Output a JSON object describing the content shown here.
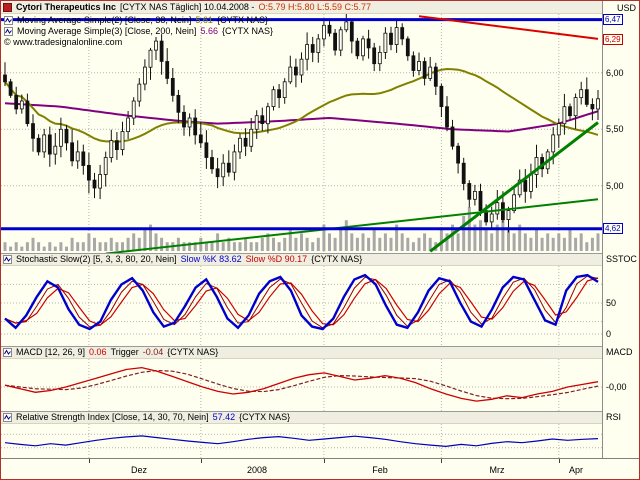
{
  "colors": {
    "background": "#fffff0",
    "border": "#b03030",
    "grid": "#b4b4b4",
    "candle": "#111111",
    "volume": "#a8a8a8",
    "ma38": "#808000",
    "ma200": "#800080",
    "support": "#0000cc",
    "resistance": "#0000cc",
    "trend_red": "#dd0000",
    "trend_green": "#008000",
    "stoch_k": "#0000cc",
    "stoch_d": "#cc0000",
    "macd_line": "#cc0000",
    "macd_trigger": "#802020",
    "rsi_line": "#0000bb",
    "ohlc_text": "#cc3300"
  },
  "main_panel": {
    "title": "Cytori Therapeutics Inc",
    "subtitle": "[CYTX NAS Täglich] 10.04.2008 -",
    "ohlc": "O:5.79 H:5.80 L:5.59 C:5.77",
    "currency_label": "USD",
    "overlays": [
      {
        "prefix": "Moving Average Simple(2) [Close, 38, Nein]",
        "value": "5.61",
        "suffix": "{CYTX NAS}"
      },
      {
        "prefix": "Moving Average Simple(3) [Close, 200, Nein]",
        "value": "5.66",
        "suffix": "{CYTX NAS}"
      }
    ],
    "copyright": "© www.tradesignalonline.com",
    "axis_labels": [
      "6,00",
      "5,50",
      "5,00"
    ],
    "flags": [
      {
        "text": "6,47",
        "value": 6.47,
        "color": "#0000cc"
      },
      {
        "text": "6,29",
        "value": 6.29,
        "color": "#cc0000"
      },
      {
        "text": "4,62",
        "value": 4.62,
        "color": "#0000cc"
      }
    ]
  },
  "stoch_panel": {
    "name": "Stochastic Slow(2) [5, 3, 3, 80, 20, Nein]",
    "k_label": "Slow %K 83.62",
    "d_label": "Slow %D 90.17",
    "symbol": "{CYTX NAS}",
    "axis_label": "SSTOC",
    "yticks": [
      "50",
      "0"
    ]
  },
  "macd_panel": {
    "name": "MACD [12, 26, 9]",
    "value": "0.06",
    "trigger_label": "Trigger",
    "trigger_value": "-0.04",
    "symbol": "{CYTX NAS}",
    "axis_label": "MACD",
    "zero_label": "-0,00"
  },
  "rsi_panel": {
    "name": "Relative Strength Index [Close, 14, 30, 70, Nein]",
    "value": "57.42",
    "symbol": "{CYTX NAS}",
    "axis_label": "RSI"
  },
  "chart_data": [
    {
      "type": "candlestick",
      "title": "Cytori Therapeutics Inc [CYTX NAS Täglich]",
      "date": "10.04.2008",
      "ohlc_last": {
        "open": 5.79,
        "high": 5.8,
        "low": 5.59,
        "close": 5.77
      },
      "ylabel": "USD",
      "ylim": [
        4.39,
        6.52
      ],
      "yticks": [
        5.0,
        5.5,
        6.0
      ],
      "closes": [
        5.92,
        5.8,
        5.68,
        5.75,
        5.55,
        5.42,
        5.3,
        5.45,
        5.28,
        5.35,
        5.5,
        5.38,
        5.22,
        5.3,
        5.18,
        5.05,
        4.98,
        5.1,
        5.25,
        5.4,
        5.32,
        5.48,
        5.6,
        5.75,
        5.9,
        6.05,
        6.2,
        6.28,
        6.1,
        5.95,
        5.8,
        5.65,
        5.52,
        5.6,
        5.45,
        5.38,
        5.25,
        5.15,
        5.08,
        5.2,
        5.12,
        5.3,
        5.42,
        5.35,
        5.5,
        5.62,
        5.55,
        5.7,
        5.85,
        5.78,
        5.92,
        6.05,
        5.98,
        6.12,
        6.25,
        6.18,
        6.3,
        6.42,
        6.35,
        6.2,
        6.38,
        6.45,
        6.28,
        6.15,
        6.3,
        6.22,
        6.08,
        6.18,
        6.35,
        6.25,
        6.4,
        6.3,
        6.15,
        6.02,
        6.1,
        5.95,
        6.05,
        5.88,
        5.7,
        5.52,
        5.35,
        5.2,
        5.02,
        4.88,
        4.95,
        4.78,
        4.68,
        4.75,
        4.85,
        4.7,
        4.78,
        4.92,
        5.05,
        4.95,
        5.1,
        5.25,
        5.15,
        5.3,
        5.45,
        5.55,
        5.7,
        5.62,
        5.78,
        5.85,
        5.72,
        5.68,
        5.77
      ],
      "volumes": [
        2,
        1,
        2,
        1,
        2,
        3,
        2,
        1,
        2,
        1,
        2,
        1,
        3,
        2,
        2,
        4,
        3,
        2,
        2,
        3,
        2,
        2,
        3,
        4,
        3,
        5,
        6,
        4,
        3,
        2,
        2,
        3,
        2,
        2,
        2,
        3,
        2,
        2,
        4,
        2,
        3,
        2,
        2,
        3,
        2,
        2,
        3,
        4,
        3,
        2,
        3,
        5,
        3,
        4,
        3,
        2,
        3,
        6,
        4,
        3,
        5,
        7,
        4,
        3,
        4,
        3,
        5,
        3,
        4,
        3,
        6,
        4,
        3,
        2,
        3,
        4,
        3,
        2,
        5,
        4,
        6,
        4,
        8,
        10,
        6,
        7,
        5,
        4,
        6,
        9,
        5,
        4,
        6,
        4,
        3,
        5,
        3,
        4,
        3,
        4,
        3,
        5,
        3,
        4,
        2,
        3,
        4
      ],
      "overlays": {
        "ma38_window": 38,
        "ma38_last": 5.61,
        "ma200_last": 5.66,
        "ma200_points": [
          [
            0,
            5.73
          ],
          [
            10,
            5.7
          ],
          [
            22,
            5.62
          ],
          [
            32,
            5.57
          ],
          [
            38,
            5.55
          ],
          [
            48,
            5.57
          ],
          [
            58,
            5.6
          ],
          [
            70,
            5.55
          ],
          [
            80,
            5.5
          ],
          [
            90,
            5.48
          ],
          [
            99,
            5.55
          ],
          [
            106,
            5.66
          ]
        ],
        "support": 4.62,
        "resistance": 6.47,
        "red_trendline": [
          [
            74,
            6.5
          ],
          [
            106,
            6.3
          ]
        ],
        "green_trendline1": [
          [
            18,
            4.4
          ],
          [
            106,
            4.88
          ]
        ],
        "green_trendline2": [
          [
            76,
            4.42
          ],
          [
            106,
            5.56
          ]
        ]
      },
      "month_boundaries": [
        15,
        35,
        57,
        78,
        99
      ],
      "month_labels": [
        {
          "text": "Dez",
          "i": 24
        },
        {
          "text": "2008",
          "i": 45
        },
        {
          "text": "Feb",
          "i": 67
        },
        {
          "text": "Mrz",
          "i": 88
        },
        {
          "text": "Apr",
          "i": 102
        }
      ]
    },
    {
      "type": "line",
      "title": "Stochastic Slow(2) [5, 3, 3, 80, 20, Nein]",
      "ylim": [
        0,
        100
      ],
      "yticks": [
        0,
        50
      ],
      "series": [
        {
          "name": "Slow %K",
          "last": 83.62
        },
        {
          "name": "Slow %D",
          "last": 90.17
        }
      ],
      "k": [
        25,
        10,
        30,
        60,
        85,
        75,
        40,
        15,
        8,
        20,
        55,
        80,
        90,
        70,
        35,
        12,
        18,
        45,
        75,
        88,
        60,
        25,
        10,
        30,
        65,
        85,
        92,
        70,
        30,
        12,
        8,
        25,
        60,
        88,
        95,
        80,
        45,
        15,
        10,
        35,
        70,
        90,
        85,
        50,
        20,
        12,
        40,
        75,
        92,
        88,
        55,
        22,
        15,
        70,
        92,
        95,
        84
      ]
    },
    {
      "type": "line",
      "title": "MACD [12, 26, 9]",
      "ylim": [
        -0.3,
        0.3
      ],
      "yticks": [
        0
      ],
      "last": 0.06,
      "trigger_last": -0.04,
      "macd": [
        0.02,
        -0.02,
        -0.06,
        -0.04,
        0.0,
        0.05,
        0.1,
        0.15,
        0.2,
        0.22,
        0.18,
        0.12,
        0.06,
        0.0,
        -0.05,
        -0.08,
        -0.06,
        -0.02,
        0.04,
        0.1,
        0.14,
        0.16,
        0.12,
        0.08,
        0.1,
        0.13,
        0.1,
        0.05,
        -0.02,
        -0.08,
        -0.13,
        -0.16,
        -0.14,
        -0.1,
        -0.12,
        -0.08,
        -0.05,
        0.0,
        0.03,
        0.06
      ]
    },
    {
      "type": "line",
      "title": "Relative Strength Index [Close, 14, 30, 70, Nein]",
      "ylim": [
        0,
        100
      ],
      "yticks": [
        30,
        70
      ],
      "last": 57.42,
      "values": [
        45,
        40,
        36,
        42,
        38,
        45,
        52,
        58,
        62,
        65,
        60,
        55,
        50,
        46,
        42,
        48,
        55,
        60,
        63,
        58,
        52,
        56,
        60,
        64,
        60,
        55,
        48,
        42,
        38,
        34,
        40,
        36,
        43,
        48,
        45,
        50,
        56,
        52,
        55,
        57
      ]
    }
  ]
}
